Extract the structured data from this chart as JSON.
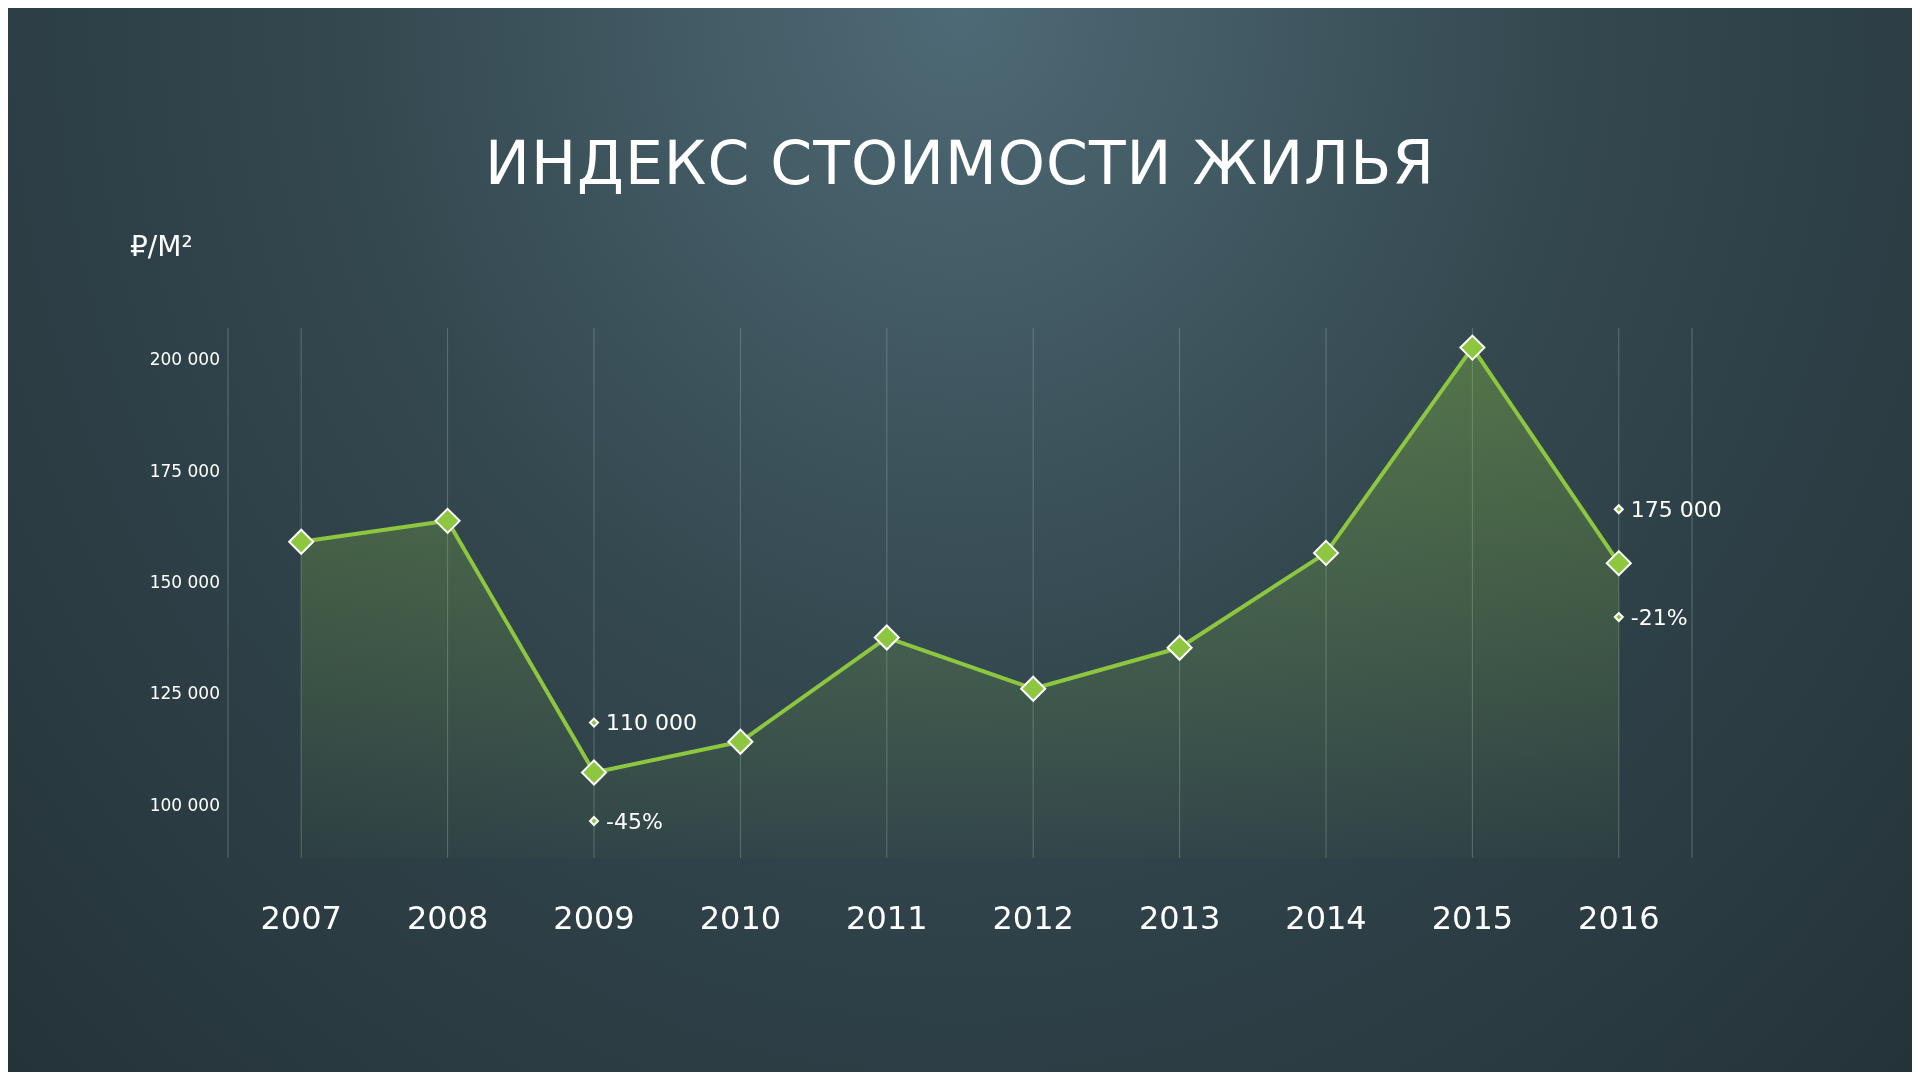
{
  "chart_data": {
    "type": "area",
    "title": "ИНДЕКС СТОИМОСТИ ЖИЛЬЯ",
    "ylabel": "₽/М²",
    "categories": [
      "2007",
      "2008",
      "2009",
      "2010",
      "2011",
      "2012",
      "2013",
      "2014",
      "2015",
      "2016"
    ],
    "series": [
      {
        "color": "#8dc63f",
        "values": [
          159000,
          163700,
          107200,
          114100,
          137500,
          126000,
          135200,
          156500,
          202600,
          154200
        ]
      }
    ],
    "ylim": [
      88000,
      207000
    ],
    "yticks": [
      {
        "value": 100000,
        "label": "100 000"
      },
      {
        "value": 125000,
        "label": "125 000"
      },
      {
        "value": 150000,
        "label": "150 000"
      },
      {
        "value": 175000,
        "label": "175 000"
      },
      {
        "value": 200000,
        "label": "200 000"
      }
    ],
    "grid": "x",
    "marker": "diamond",
    "line_style": "solid",
    "legend": false,
    "annotations": [
      {
        "text": "110 000",
        "x": "2009",
        "y": 118400
      },
      {
        "text": "-45%",
        "x": "2009",
        "y": 96300
      },
      {
        "text": "175 000",
        "x": "2016",
        "y": 166300
      },
      {
        "text": "-21%",
        "x": "2016",
        "y": 142100
      }
    ]
  }
}
